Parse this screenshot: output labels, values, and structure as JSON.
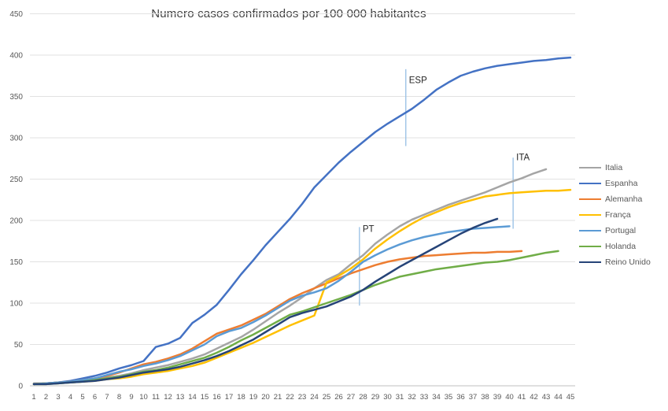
{
  "title": "Numero casos confirmados por 100 000 habitantes",
  "chart_data": {
    "type": "line",
    "title": "Numero casos confirmados por 100 000 habitantes",
    "xlabel": "",
    "ylabel": "",
    "ylim": [
      0,
      450
    ],
    "grid": true,
    "legend_position": "right",
    "y_ticks": [
      0,
      50,
      100,
      150,
      200,
      250,
      300,
      350,
      400,
      450
    ],
    "x_categories": [
      1,
      2,
      3,
      4,
      5,
      6,
      7,
      8,
      9,
      10,
      11,
      12,
      13,
      14,
      15,
      16,
      17,
      18,
      19,
      20,
      21,
      22,
      23,
      24,
      25,
      26,
      27,
      28,
      29,
      30,
      31,
      32,
      33,
      34,
      35,
      36,
      37,
      38,
      39,
      40,
      41,
      42,
      43,
      44,
      45
    ],
    "series": [
      {
        "name": "Italia",
        "color": "#A5A5A5",
        "values": [
          3,
          3,
          4,
          5,
          6,
          8,
          10,
          12,
          15,
          19,
          22,
          25,
          29,
          33,
          38,
          45,
          52,
          59,
          68,
          78,
          88,
          97,
          107,
          118,
          128,
          135,
          147,
          158,
          172,
          183,
          193,
          201,
          207,
          213,
          219,
          224,
          229,
          234,
          240,
          246,
          251,
          257,
          262,
          null,
          null
        ]
      },
      {
        "name": "Espanha",
        "color": "#4472C4",
        "values": [
          2,
          3,
          4,
          6,
          9,
          12,
          16,
          21,
          25,
          30,
          47,
          51,
          58,
          76,
          86,
          98,
          116,
          135,
          152,
          170,
          186,
          202,
          220,
          240,
          255,
          270,
          283,
          295,
          307,
          317,
          326,
          335,
          346,
          358,
          367,
          375,
          380,
          384,
          387,
          389,
          391,
          393,
          394,
          396,
          397
        ]
      },
      {
        "name": "Alemanha",
        "color": "#ED7D31",
        "values": [
          2,
          3,
          4,
          5,
          7,
          9,
          12,
          16,
          21,
          26,
          29,
          33,
          38,
          45,
          54,
          63,
          68,
          73,
          80,
          87,
          96,
          105,
          112,
          118,
          124,
          130,
          136,
          141,
          146,
          150,
          153,
          155,
          157,
          158,
          159,
          160,
          161,
          161,
          162,
          162,
          163,
          null,
          null,
          null,
          null
        ]
      },
      {
        "name": "França",
        "color": "#FFC000",
        "values": [
          2,
          3,
          3,
          4,
          5,
          6,
          8,
          9,
          11,
          14,
          16,
          18,
          21,
          24,
          28,
          34,
          40,
          46,
          52,
          59,
          66,
          73,
          79,
          85,
          125,
          133,
          142,
          153,
          166,
          177,
          187,
          196,
          204,
          210,
          216,
          221,
          225,
          229,
          231,
          233,
          234,
          235,
          236,
          236,
          237
        ]
      },
      {
        "name": "Portugal",
        "color": "#5B9BD5",
        "values": [
          2,
          3,
          4,
          5,
          7,
          9,
          13,
          17,
          20,
          24,
          27,
          31,
          36,
          43,
          50,
          60,
          66,
          70,
          77,
          85,
          94,
          103,
          109,
          113,
          118,
          127,
          138,
          150,
          158,
          165,
          171,
          176,
          180,
          183,
          186,
          188,
          190,
          191,
          192,
          193,
          null,
          null,
          null,
          null,
          null
        ]
      },
      {
        "name": "Holanda",
        "color": "#70AD47",
        "values": [
          2,
          2,
          3,
          4,
          5,
          7,
          9,
          11,
          14,
          17,
          19,
          22,
          26,
          30,
          34,
          40,
          47,
          55,
          62,
          70,
          78,
          86,
          90,
          95,
          100,
          105,
          110,
          116,
          122,
          127,
          132,
          135,
          138,
          141,
          143,
          145,
          147,
          149,
          150,
          152,
          155,
          158,
          161,
          163,
          null
        ]
      },
      {
        "name": "Reino Unido",
        "color": "#264478",
        "values": [
          2,
          2,
          3,
          4,
          5,
          6,
          8,
          10,
          13,
          16,
          18,
          20,
          23,
          27,
          31,
          36,
          42,
          49,
          56,
          65,
          74,
          83,
          88,
          92,
          96,
          102,
          108,
          116,
          126,
          135,
          144,
          152,
          160,
          168,
          176,
          184,
          191,
          197,
          202,
          null,
          null,
          null,
          null,
          null,
          null
        ]
      }
    ],
    "annotations": [
      {
        "label": "ESP",
        "x": 31.5,
        "v_from": 290,
        "v_to": 383,
        "label_v": 366,
        "color": "#9DC3E6"
      },
      {
        "label": "ITA",
        "x": 40.3,
        "v_from": 190,
        "v_to": 276,
        "label_v": 273,
        "color": "#9DC3E6"
      },
      {
        "label": "PT",
        "x": 27.7,
        "v_from": 97,
        "v_to": 192,
        "label_v": 186,
        "color": "#9DC3E6"
      }
    ]
  }
}
